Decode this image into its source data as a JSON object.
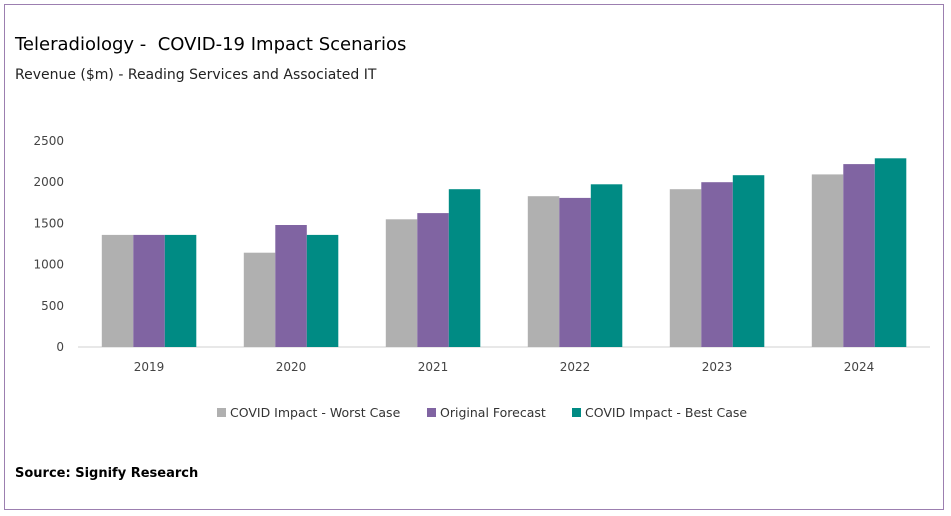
{
  "header": {
    "title": "Teleradiology -  COVID-19 Impact Scenarios",
    "subtitle": "Revenue ($m) - Reading Services and Associated IT"
  },
  "footer": {
    "source": "Source: Signify Research"
  },
  "chart_data": {
    "type": "bar",
    "categories": [
      "2019",
      "2020",
      "2021",
      "2022",
      "2023",
      "2024"
    ],
    "series": [
      {
        "name": "COVID Impact - Worst Case",
        "color": "#b0b0b0",
        "values": [
          1360,
          1145,
          1550,
          1830,
          1915,
          2095
        ]
      },
      {
        "name": "Original Forecast",
        "color": "#8064a2",
        "values": [
          1360,
          1480,
          1625,
          1810,
          2000,
          2220
        ]
      },
      {
        "name": "COVID Impact - Best Case",
        "color": "#008b84",
        "values": [
          1360,
          1360,
          1915,
          1975,
          2085,
          2290
        ]
      }
    ],
    "ylim": [
      0,
      2500
    ],
    "yticks": [
      0,
      500,
      1000,
      1500,
      2000,
      2500
    ],
    "grid": false,
    "legend_position": "bottom"
  }
}
